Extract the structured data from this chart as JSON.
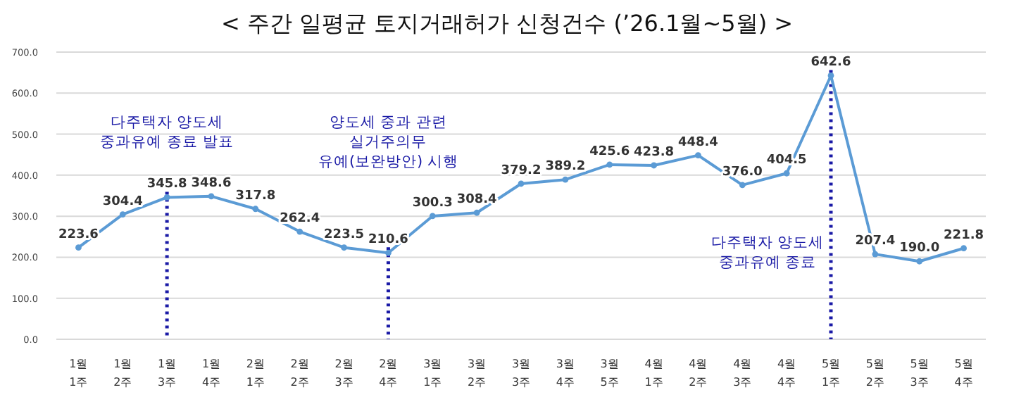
{
  "chart_data": {
    "type": "line",
    "title": "< 주간 일평균 토지거래허가 신청건수 (’26.1월~5월) >",
    "categories": [
      "1월\n1주",
      "1월\n2주",
      "1월\n3주",
      "1월\n4주",
      "2월\n1주",
      "2월\n2주",
      "2월\n3주",
      "2월\n4주",
      "3월\n1주",
      "3월\n2주",
      "3월\n3주",
      "3월\n4주",
      "3월\n5주",
      "4월\n1주",
      "4월\n2주",
      "4월\n3주",
      "4월\n4주",
      "5월\n1주",
      "5월\n2주",
      "5월\n3주",
      "5월\n4주"
    ],
    "series": [
      {
        "color": "#5b9bd5",
        "values": [
          223.6,
          304.4,
          345.8,
          348.6,
          317.8,
          262.4,
          223.5,
          210.6,
          300.3,
          308.4,
          379.2,
          389.2,
          425.6,
          423.8,
          448.4,
          376.0,
          404.5,
          642.6,
          207.4,
          190.0,
          221.8
        ],
        "value_labels": [
          "223.6",
          "304.4",
          "345.8",
          "348.6",
          "317.8",
          "262.4",
          "223.5",
          "210.6",
          "300.3",
          "308.4",
          "379.2",
          "389.2",
          "425.6",
          "423.8",
          "448.4",
          "376.0",
          "404.5",
          "642.6",
          "207.4",
          "190.0",
          "221.8"
        ]
      }
    ],
    "ylim": [
      0,
      700
    ],
    "yticks": [
      {
        "value": 0,
        "label": "0.0"
      },
      {
        "value": 100,
        "label": "100.0"
      },
      {
        "value": 200,
        "label": "200.0"
      },
      {
        "value": 300,
        "label": "300.0"
      },
      {
        "value": 400,
        "label": "400.0"
      },
      {
        "value": 500,
        "label": "500.0"
      },
      {
        "value": 600,
        "label": "600.0"
      },
      {
        "value": 700,
        "label": "700.0"
      }
    ],
    "grid": "y",
    "marker": "circle",
    "line_style": "solid",
    "ref_lines": [
      {
        "axis": "x",
        "value": "1월\n3주",
        "label": "다주택자 양도세\n중과유예 종료 발표",
        "color": "#1a1aa6",
        "line_style": "dotted"
      },
      {
        "axis": "x",
        "value": "2월\n4주",
        "label": "양도세 중과 관련\n실거주의무\n유예(보완방안) 시행",
        "color": "#1a1aa6",
        "line_style": "dotted"
      },
      {
        "axis": "x",
        "value": "5월\n1주",
        "label": "다주택자 양도세\n중과유예 종료",
        "color": "#1a1aa6",
        "line_style": "dotted"
      }
    ]
  }
}
